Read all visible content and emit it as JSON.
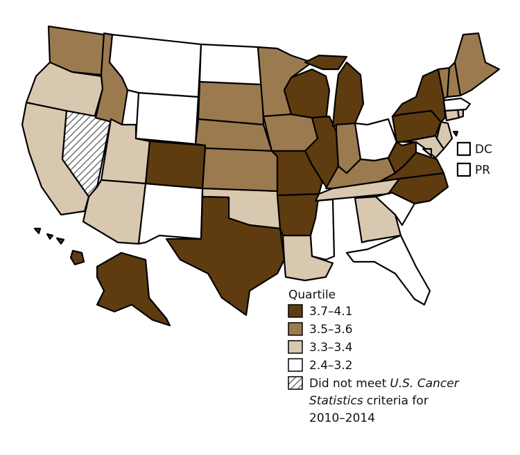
{
  "map_data": {
    "legend": {
      "title": "Quartile",
      "items": [
        {
          "label": "3.7–4.1",
          "color": "#5e3c10"
        },
        {
          "label": "3.5–3.6",
          "color": "#9c7a50"
        },
        {
          "label": "3.3–3.4",
          "color": "#d9c8b0"
        },
        {
          "label": "2.4–3.2",
          "color": "#ffffff"
        },
        {
          "pattern": "hatch",
          "label_lines": [
            [
              {
                "text": "Did not meet"
              },
              {
                "text": "U.S. Cancer",
                "italic": true
              }
            ],
            [
              {
                "text": "Statistics",
                "italic": true
              },
              {
                "text": "criteria for"
              }
            ],
            [
              {
                "text": "2010–2014"
              }
            ]
          ]
        }
      ]
    },
    "insets": [
      {
        "label": "DC",
        "class": 3
      },
      {
        "label": "PR",
        "class": 3
      }
    ],
    "region_classes": [
      1,
      2,
      2,
      4,
      1,
      2,
      3,
      3,
      1,
      3,
      2,
      2,
      3,
      1,
      1,
      1,
      2,
      3,
      0,
      0,
      0,
      3,
      1,
      0,
      0,
      0,
      0,
      2,
      2,
      3,
      3,
      1,
      1,
      2,
      2,
      0,
      0,
      0,
      0,
      0,
      1,
      1,
      1,
      2,
      2,
      3,
      0,
      0,
      2,
      0
    ]
  }
}
